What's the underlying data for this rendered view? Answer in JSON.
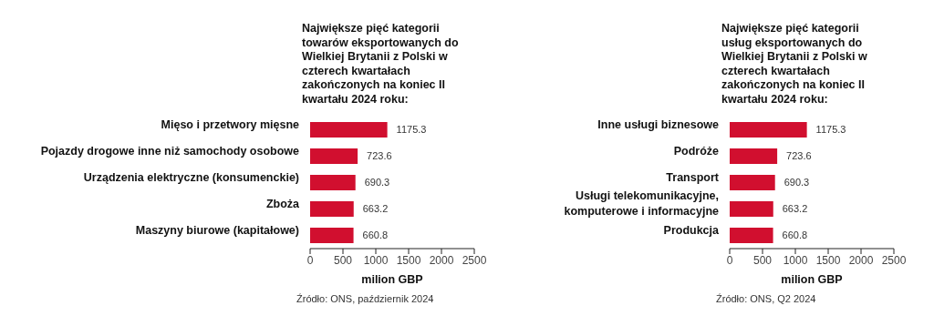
{
  "chart_data": [
    {
      "type": "bar",
      "orientation": "horizontal",
      "title": "Największe pięć kategorii towarów eksportowanych do Wielkiej Brytanii z Polski w czterech kwartałach zakończonych na koniec II kwartału 2024 roku:",
      "categories": [
        "Mięso i przetwory mięsne",
        "Pojazdy drogowe inne niż samochody osobowe",
        "Urządzenia elektryczne (konsumenckie)",
        "Zboża",
        "Maszyny biurowe (kapitałowe)"
      ],
      "values": [
        1175.3,
        723.6,
        690.3,
        663.2,
        660.8
      ],
      "color": "#d10f2f",
      "xlim": [
        0,
        2500
      ],
      "xticks": [
        0,
        500,
        1000,
        1500,
        2000,
        2500
      ],
      "xlabel": "milion GBP",
      "data_labels": true,
      "grid": false,
      "legend": false,
      "annotations": [
        "Źródło: ONS, październik 2024"
      ]
    },
    {
      "type": "bar",
      "orientation": "horizontal",
      "title": "Największe pięć kategorii usług eksportowanych do Wielkiej Brytanii z Polski w czterech kwartałach zakończonych na koniec II kwartału 2024 roku:",
      "categories": [
        "Inne usługi biznesowe",
        "Podróże",
        "Transport",
        "Usługi telekomunikacyjne, komputerowe i informacyjne",
        "Produkcja"
      ],
      "values": [
        1175.3,
        723.6,
        690.3,
        663.2,
        660.8
      ],
      "color": "#d10f2f",
      "xlim": [
        0,
        2500
      ],
      "xticks": [
        0,
        500,
        1000,
        1500,
        2000,
        2500
      ],
      "xlabel": "milion GBP",
      "data_labels": true,
      "grid": false,
      "legend": false,
      "annotations": [
        "Źródło: ONS, Q2 2024"
      ]
    }
  ]
}
